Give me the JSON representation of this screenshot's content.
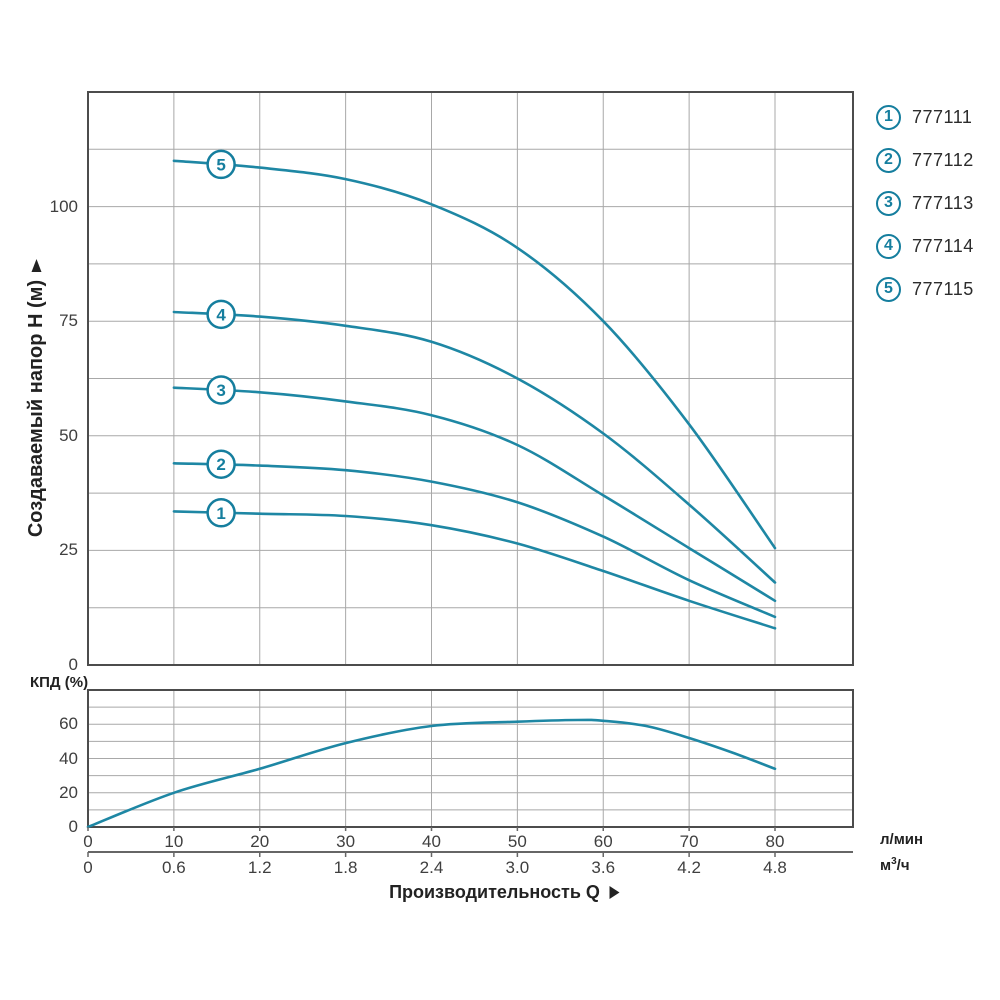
{
  "colors": {
    "curve": "#1e87a4",
    "badge": "#157e9e",
    "grid": "#a8a8a8",
    "frame": "#4c4c4c",
    "text": "#222222",
    "tick_text": "#3f3f3f"
  },
  "y_axis": {
    "title": "Создаваемый напор H (м)",
    "ticks": [
      0,
      25,
      50,
      75,
      100
    ]
  },
  "efficiency_axis": {
    "label": "КПД (%)",
    "ticks": [
      0,
      20,
      40,
      60
    ]
  },
  "x_axis": {
    "title": "Производительность Q",
    "unit_rows": [
      {
        "unit": "л/мин",
        "unit_html": "л/мин",
        "ticks": [
          "0",
          "10",
          "20",
          "30",
          "40",
          "50",
          "60",
          "70",
          "80"
        ]
      },
      {
        "unit": "м³/ч",
        "unit_html": "м<sup>3</sup>/ч",
        "ticks": [
          "0",
          "0.6",
          "1.2",
          "1.8",
          "2.4",
          "3.0",
          "3.6",
          "4.2",
          "4.8"
        ]
      }
    ]
  },
  "legend": {
    "items": [
      {
        "badge": "1",
        "model": "777111"
      },
      {
        "badge": "2",
        "model": "777112"
      },
      {
        "badge": "3",
        "model": "777113"
      },
      {
        "badge": "4",
        "model": "777114"
      },
      {
        "badge": "5",
        "model": "777115"
      }
    ]
  },
  "chart_data": [
    {
      "type": "line",
      "name": "head-flow-curves",
      "xlabel": "Производительность Q (л/мин; м³/ч)",
      "ylabel": "Создаваемый напор H (м)",
      "xlim": [
        0,
        89
      ],
      "ylim": [
        0,
        125
      ],
      "grid": true,
      "grid_step_x": 10,
      "grid_step_y": 12.5,
      "y_ticks_labeled": [
        0,
        25,
        50,
        75,
        100
      ],
      "series": [
        {
          "name": "777111",
          "badge": "1",
          "badge_point": [
            15.5,
            33.2
          ],
          "points": [
            [
              10,
              33.5
            ],
            [
              20,
              33
            ],
            [
              30,
              32.5
            ],
            [
              40,
              30.5
            ],
            [
              50,
              26.5
            ],
            [
              60,
              20.5
            ],
            [
              70,
              14
            ],
            [
              80,
              8
            ]
          ]
        },
        {
          "name": "777112",
          "badge": "2",
          "badge_point": [
            15.5,
            43.8
          ],
          "points": [
            [
              10,
              44
            ],
            [
              20,
              43.5
            ],
            [
              30,
              42.5
            ],
            [
              40,
              40
            ],
            [
              50,
              35.5
            ],
            [
              60,
              28
            ],
            [
              70,
              18.5
            ],
            [
              80,
              10.5
            ]
          ]
        },
        {
          "name": "777113",
          "badge": "3",
          "badge_point": [
            15.5,
            60
          ],
          "points": [
            [
              10,
              60.5
            ],
            [
              20,
              59.5
            ],
            [
              30,
              57.5
            ],
            [
              40,
              54.5
            ],
            [
              50,
              48
            ],
            [
              60,
              37
            ],
            [
              70,
              25.5
            ],
            [
              80,
              14
            ]
          ]
        },
        {
          "name": "777114",
          "badge": "4",
          "badge_point": [
            15.5,
            76.5
          ],
          "points": [
            [
              10,
              77
            ],
            [
              20,
              76
            ],
            [
              30,
              74
            ],
            [
              40,
              70.5
            ],
            [
              50,
              62.5
            ],
            [
              60,
              50.5
            ],
            [
              70,
              35
            ],
            [
              80,
              18
            ]
          ]
        },
        {
          "name": "777115",
          "badge": "5",
          "badge_point": [
            15.5,
            109.2
          ],
          "points": [
            [
              10,
              110
            ],
            [
              20,
              108.5
            ],
            [
              30,
              106
            ],
            [
              40,
              100.5
            ],
            [
              50,
              91
            ],
            [
              60,
              75
            ],
            [
              70,
              52.5
            ],
            [
              80,
              25.5
            ]
          ]
        }
      ]
    },
    {
      "type": "line",
      "name": "efficiency-curve",
      "xlabel": "Производительность Q (л/мин)",
      "ylabel": "КПД (%)",
      "xlim": [
        0,
        89
      ],
      "ylim": [
        0,
        80
      ],
      "grid": true,
      "grid_step_x": 10,
      "grid_step_y": 10,
      "y_ticks_labeled": [
        0,
        20,
        40,
        60
      ],
      "series": [
        {
          "name": "КПД",
          "points": [
            [
              0,
              0
            ],
            [
              10,
              20
            ],
            [
              20,
              34
            ],
            [
              30,
              49
            ],
            [
              40,
              59
            ],
            [
              50,
              61.5
            ],
            [
              57,
              62.5
            ],
            [
              60,
              62
            ],
            [
              65,
              59
            ],
            [
              70,
              52
            ],
            [
              75,
              43.5
            ],
            [
              80,
              34
            ]
          ]
        }
      ]
    }
  ]
}
